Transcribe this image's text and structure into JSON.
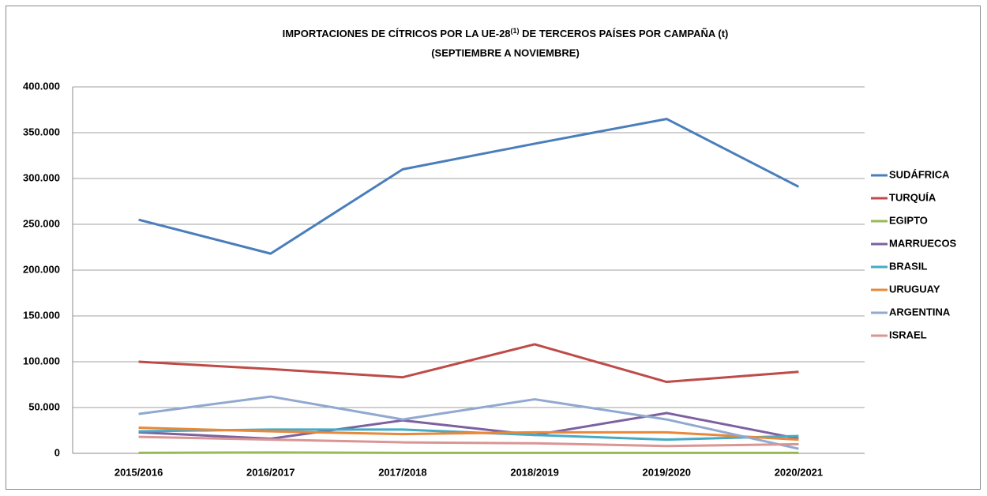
{
  "chart_data": {
    "type": "line",
    "title": [
      "IMPORTACIONES DE CÍTRICOS POR LA UE-28",
      "(1)",
      " DE TERCEROS PAÍSES POR CAMPAÑA  (t)"
    ],
    "subtitle": "(SEPTIEMBRE A NOVIEMBRE)",
    "categories": [
      "2015/2016",
      "2016/2017",
      "2017/2018",
      "2018/2019",
      "2019/2020",
      "2020/2021"
    ],
    "series": [
      {
        "name": "SUDÁFRICA",
        "color": "#4a7ebb",
        "values": [
          255000,
          218000,
          310000,
          338000,
          365000,
          291000
        ]
      },
      {
        "name": "TURQUÍA",
        "color": "#be4b48",
        "values": [
          100000,
          92000,
          83000,
          119000,
          78000,
          89000
        ]
      },
      {
        "name": "EGIPTO",
        "color": "#98b954",
        "values": [
          500,
          1000,
          500,
          500,
          500,
          500
        ]
      },
      {
        "name": "MARRUECOS",
        "color": "#7d60a0",
        "values": [
          23000,
          16000,
          36000,
          20000,
          44000,
          16000
        ]
      },
      {
        "name": "BRASIL",
        "color": "#46aac5",
        "values": [
          24000,
          26000,
          26000,
          20000,
          15000,
          19000
        ]
      },
      {
        "name": "URUGUAY",
        "color": "#e8883a",
        "values": [
          28000,
          24000,
          21000,
          23000,
          23000,
          15000
        ]
      },
      {
        "name": "ARGENTINA",
        "color": "#91a8d0",
        "values": [
          43000,
          62000,
          37000,
          59000,
          37000,
          5000
        ]
      },
      {
        "name": "ISRAEL",
        "color": "#d99694",
        "values": [
          18000,
          15000,
          12000,
          11000,
          8000,
          10000
        ]
      }
    ],
    "ylim": [
      0,
      400000
    ],
    "yticks": [
      0,
      {
        "value": 50000,
        "label": "50.000"
      },
      {
        "value": 100000,
        "label": "100.000"
      },
      {
        "value": 150000,
        "label": "150.000"
      },
      {
        "value": 200000,
        "label": "200.000"
      },
      {
        "value": 250000,
        "label": "250.000"
      },
      {
        "value": 300000,
        "label": "300.000"
      },
      {
        "value": 350000,
        "label": "350.000"
      },
      {
        "value": 400000,
        "label": "400.000"
      }
    ],
    "grid": true,
    "legend": "right"
  }
}
